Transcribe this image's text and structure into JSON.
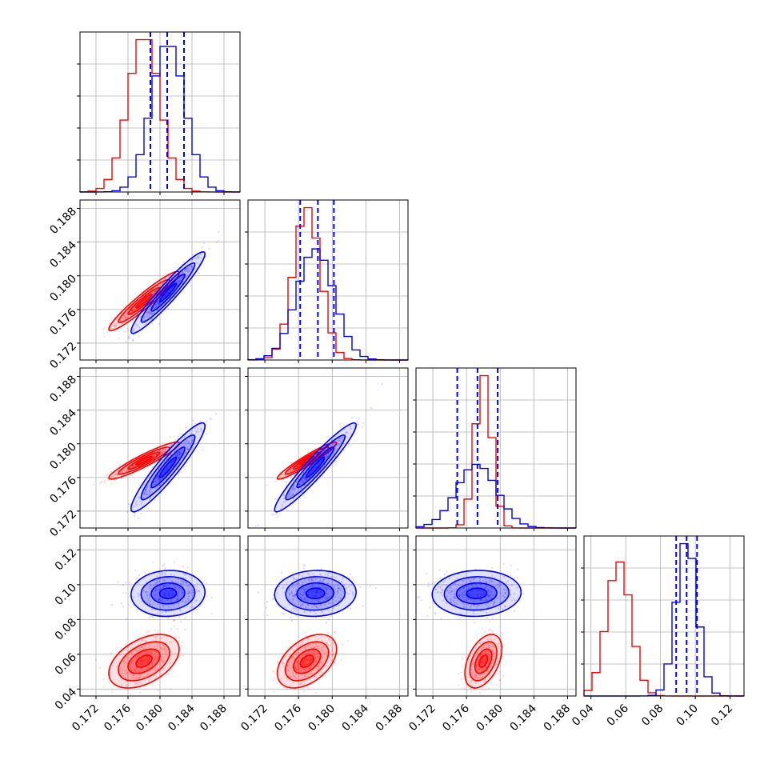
{
  "chart_data": {
    "type": "corner",
    "description_free": true,
    "grid": true,
    "params": 4,
    "axes": [
      {
        "range": [
          0.17,
          0.19
        ],
        "ticks": [
          "0.172",
          "0.176",
          "0.180",
          "0.184",
          "0.188"
        ],
        "tick_values": [
          0.172,
          0.176,
          0.18,
          0.184,
          0.188
        ]
      },
      {
        "range": [
          0.17,
          0.189
        ],
        "ticks": [
          "0.172",
          "0.176",
          "0.180",
          "0.184",
          "0.188"
        ],
        "tick_values": [
          0.172,
          0.176,
          0.18,
          0.184,
          0.188
        ]
      },
      {
        "range": [
          0.17,
          0.189
        ],
        "ticks": [
          "0.172",
          "0.176",
          "0.180",
          "0.184",
          "0.188"
        ],
        "tick_values": [
          0.172,
          0.176,
          0.18,
          0.184,
          0.188
        ]
      },
      {
        "range": [
          0.036,
          0.128
        ],
        "ticks": [
          "0.04",
          "0.06",
          "0.08",
          "0.10",
          "0.12"
        ],
        "tick_values": [
          0.04,
          0.06,
          0.08,
          0.1,
          0.12
        ]
      }
    ],
    "series": [
      {
        "color": "#ff0000",
        "mean": [
          0.178,
          0.177,
          0.178,
          0.056
        ],
        "std": [
          0.002,
          0.0016,
          0.001,
          0.007
        ],
        "corr_pairs": {
          "1-0": 0.95,
          "2-0": 0.93,
          "2-1": 0.95,
          "3-0": 0.45,
          "3-1": 0.45,
          "3-2": 0.45
        }
      },
      {
        "color": "#0000ff",
        "mean": [
          0.181,
          0.178,
          0.1772,
          0.095
        ],
        "std": [
          0.0021,
          0.0022,
          0.0024,
          0.006
        ],
        "corr_pairs": {
          "1-0": 0.95,
          "2-0": 0.93,
          "2-1": 0.95,
          "3-0": 0.05,
          "3-1": 0.05,
          "3-2": 0.05
        }
      }
    ],
    "quantile_lines": {
      "color": "#0000ff",
      "values": [
        [
          0.1788,
          0.1809,
          0.183
        ],
        [
          0.1762,
          0.1783,
          0.1802
        ],
        [
          0.1749,
          0.1773,
          0.1797
        ],
        [
          0.089,
          0.095,
          0.101
        ]
      ]
    },
    "hist_peaks": {
      "red": [
        0.178,
        0.1778,
        0.1785,
        0.055
      ],
      "blue": [
        0.181,
        0.178,
        0.1775,
        0.096
      ]
    }
  }
}
